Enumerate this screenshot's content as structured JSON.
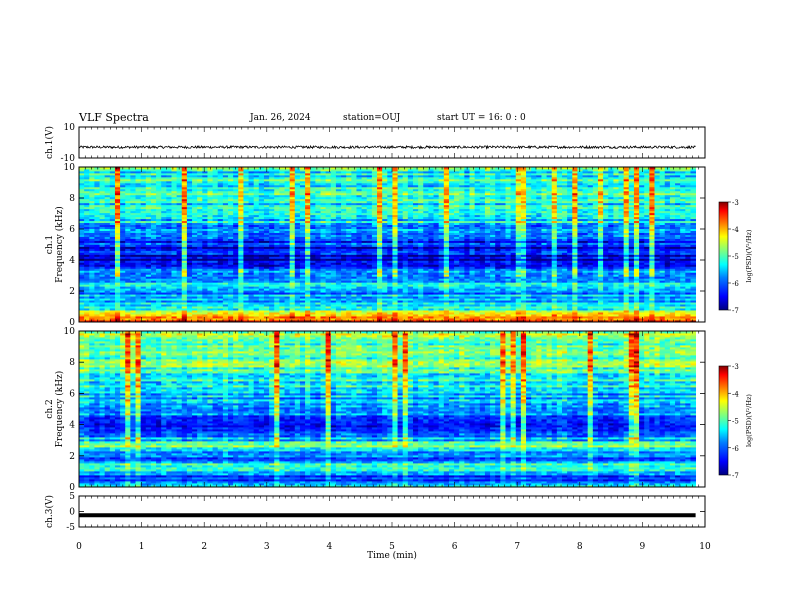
{
  "header": {
    "title": "VLF Spectra",
    "date": "Jan. 26, 2024",
    "station": "station=OUJ",
    "start": "start UT =  16: 0  : 0"
  },
  "chart_data": [
    {
      "type": "line",
      "panel": "ch1-waveform",
      "ylabel": "ch.1(V)",
      "ylim": [
        -10,
        10
      ],
      "yticks": [
        "10",
        "-10"
      ],
      "xlim": [
        0,
        10
      ],
      "series": [
        {
          "values_approx": "noisy trace near -3 V across 0-9.85 min",
          "level": -3
        }
      ]
    },
    {
      "type": "heatmap",
      "panel": "ch1-spectrogram",
      "ylabel": "ch.1\nFrequency (kHz)",
      "ylim": [
        0,
        10
      ],
      "yticks": [
        "0",
        "2",
        "4",
        "6",
        "8",
        "10"
      ],
      "xlim": [
        0,
        10
      ],
      "data_extent_min": 9.85,
      "colorbar": {
        "label": "log(PSD)(V²/Hz)",
        "range": [
          -7,
          -3
        ],
        "ticks": [
          "-3",
          "-4",
          "-5",
          "-6",
          "-7"
        ]
      },
      "frequency_profile_logpsd": [
        {
          "f": 0.0,
          "v": -3.6
        },
        {
          "f": 0.4,
          "v": -4.3
        },
        {
          "f": 1.0,
          "v": -5.2
        },
        {
          "f": 1.8,
          "v": -5.8
        },
        {
          "f": 2.5,
          "v": -5.6
        },
        {
          "f": 3.2,
          "v": -6.0
        },
        {
          "f": 4.2,
          "v": -6.7
        },
        {
          "f": 5.0,
          "v": -6.4
        },
        {
          "f": 6.0,
          "v": -5.6
        },
        {
          "f": 7.5,
          "v": -5.2
        },
        {
          "f": 10.0,
          "v": -5.1
        }
      ]
    },
    {
      "type": "heatmap",
      "panel": "ch2-spectrogram",
      "ylabel": "ch.2\nFrequency (kHz)",
      "ylim": [
        0,
        10
      ],
      "yticks": [
        "0",
        "2",
        "4",
        "6",
        "8",
        "10"
      ],
      "xlim": [
        0,
        10
      ],
      "data_extent_min": 9.85,
      "colorbar": {
        "label": "log(PSD)(V²/Hz)",
        "range": [
          -7,
          -3
        ],
        "ticks": [
          "-3",
          "-4",
          "-5",
          "-6",
          "-7"
        ]
      },
      "frequency_profile_logpsd": [
        {
          "f": 0.0,
          "v": -5.4
        },
        {
          "f": 0.6,
          "v": -6.2
        },
        {
          "f": 1.3,
          "v": -5.1
        },
        {
          "f": 2.0,
          "v": -6.1
        },
        {
          "f": 2.6,
          "v": -4.9
        },
        {
          "f": 3.2,
          "v": -5.8
        },
        {
          "f": 4.0,
          "v": -6.2
        },
        {
          "f": 5.0,
          "v": -5.8
        },
        {
          "f": 6.5,
          "v": -5.2
        },
        {
          "f": 8.0,
          "v": -4.9
        },
        {
          "f": 10.0,
          "v": -4.7
        }
      ]
    },
    {
      "type": "line",
      "panel": "ch3-waveform",
      "ylabel": "ch.3(V)",
      "ylim": [
        -5,
        5
      ],
      "yticks": [
        "5",
        "0",
        "-5"
      ],
      "xlim": [
        0,
        10
      ],
      "series": [
        {
          "values_approx": "thick flat trace near -1.2 V across 0-9.85 min",
          "level": -1.2
        }
      ]
    }
  ],
  "xaxis": {
    "label": "Time (min)",
    "ticks": [
      "0",
      "1",
      "2",
      "3",
      "4",
      "5",
      "6",
      "7",
      "8",
      "9",
      "10"
    ]
  },
  "colors": {
    "colormap": [
      "#00007f",
      "#0000ff",
      "#007fff",
      "#00ffff",
      "#7fff7f",
      "#ffff00",
      "#ff7f00",
      "#ff0000",
      "#7f0000"
    ]
  }
}
